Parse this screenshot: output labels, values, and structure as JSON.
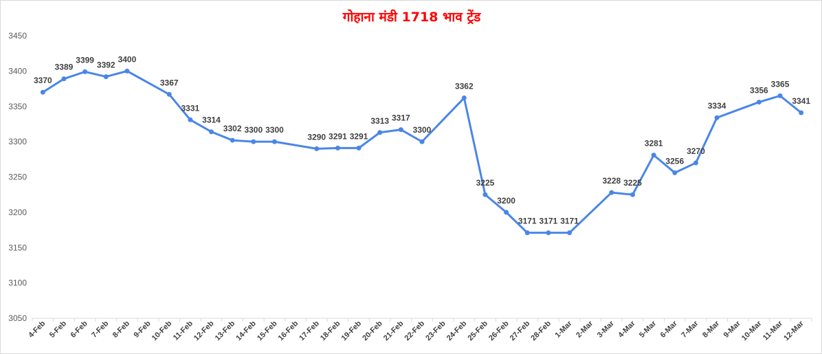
{
  "colors": {
    "title": "#ff0000",
    "line": "#4a86e8",
    "axis": "#d9d9d9"
  },
  "chart_data": {
    "type": "line",
    "title": "गोहाना मंडी 1718 भाव ट्रेंड",
    "xlabel": "",
    "ylabel": "",
    "ylim": [
      3050,
      3450
    ],
    "yticks": [
      3050,
      3100,
      3150,
      3200,
      3250,
      3300,
      3350,
      3400,
      3450
    ],
    "grid": false,
    "legend": "none",
    "categories": [
      "4-Feb",
      "5-Feb",
      "6-Feb",
      "7-Feb",
      "8-Feb",
      "9-Feb",
      "10-Feb",
      "11-Feb",
      "12-Feb",
      "13-Feb",
      "14-Feb",
      "15-Feb",
      "16-Feb",
      "17-Feb",
      "18-Feb",
      "19-Feb",
      "20-Feb",
      "21-Feb",
      "22-Feb",
      "23-Feb",
      "24-Feb",
      "25-Feb",
      "26-Feb",
      "27-Feb",
      "28-Feb",
      "1-Mar",
      "2-Mar",
      "3-Mar",
      "4-Mar",
      "5-Mar",
      "6-Mar",
      "7-Mar",
      "8-Mar",
      "9-Mar",
      "10-Mar",
      "11-Mar",
      "12-Mar"
    ],
    "series": [
      {
        "points": [
          {
            "x": "4-Feb",
            "y": 3370
          },
          {
            "x": "5-Feb",
            "y": 3389
          },
          {
            "x": "6-Feb",
            "y": 3399
          },
          {
            "x": "7-Feb",
            "y": 3392
          },
          {
            "x": "8-Feb",
            "y": 3400
          },
          {
            "x": "10-Feb",
            "y": 3367
          },
          {
            "x": "11-Feb",
            "y": 3331
          },
          {
            "x": "12-Feb",
            "y": 3314
          },
          {
            "x": "13-Feb",
            "y": 3302
          },
          {
            "x": "14-Feb",
            "y": 3300
          },
          {
            "x": "15-Feb",
            "y": 3300
          },
          {
            "x": "17-Feb",
            "y": 3290
          },
          {
            "x": "18-Feb",
            "y": 3291
          },
          {
            "x": "19-Feb",
            "y": 3291
          },
          {
            "x": "20-Feb",
            "y": 3313
          },
          {
            "x": "21-Feb",
            "y": 3317
          },
          {
            "x": "22-Feb",
            "y": 3300
          },
          {
            "x": "24-Feb",
            "y": 3362
          },
          {
            "x": "25-Feb",
            "y": 3225
          },
          {
            "x": "26-Feb",
            "y": 3200
          },
          {
            "x": "27-Feb",
            "y": 3171
          },
          {
            "x": "28-Feb",
            "y": 3171
          },
          {
            "x": "1-Mar",
            "y": 3171
          },
          {
            "x": "3-Mar",
            "y": 3228
          },
          {
            "x": "4-Mar",
            "y": 3225
          },
          {
            "x": "5-Mar",
            "y": 3281
          },
          {
            "x": "6-Mar",
            "y": 3256
          },
          {
            "x": "7-Mar",
            "y": 3270
          },
          {
            "x": "8-Mar",
            "y": 3334
          },
          {
            "x": "10-Mar",
            "y": 3356
          },
          {
            "x": "11-Mar",
            "y": 3365
          },
          {
            "x": "12-Mar",
            "y": 3341
          }
        ]
      }
    ]
  }
}
